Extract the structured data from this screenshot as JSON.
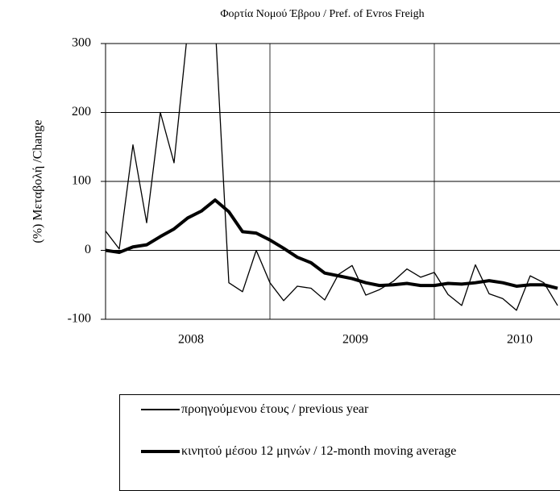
{
  "chart_data": {
    "type": "line",
    "title": "Φορτία Νομού Έβρου / Pref. of  Evros Freigh",
    "y_label": "(%) Μεταβολή /Change",
    "categories": [
      null,
      null,
      null,
      null,
      null,
      null,
      "2008",
      null,
      null,
      null,
      null,
      null,
      null,
      null,
      null,
      null,
      null,
      null,
      "2009",
      null,
      null,
      null,
      null,
      null,
      null,
      null,
      null,
      null,
      null,
      null,
      "2010",
      null,
      null,
      null
    ],
    "series": [
      {
        "name": "προηγούμενου έτους / previous year",
        "color": "#000000",
        "width": 1.3,
        "values": [
          28,
          2,
          153,
          40,
          200,
          127,
          320,
          500,
          330,
          -47,
          -60,
          0,
          -47,
          -73,
          -52,
          -55,
          -72,
          -35,
          -22,
          -65,
          -57,
          -45,
          -27,
          -39,
          -32,
          -64,
          -80,
          -21,
          -63,
          -70,
          -87,
          -37,
          -47,
          -80
        ]
      },
      {
        "name": "κινητού μέσου 12 μηνών / 12-month moving average",
        "color": "#000000",
        "width": 4,
        "values": [
          0,
          -3,
          5,
          8,
          20,
          31,
          47,
          57,
          73,
          56,
          27,
          25,
          15,
          3,
          -10,
          -18,
          -33,
          -37,
          -41,
          -47,
          -51,
          -50,
          -48,
          -51,
          -51,
          -48,
          -49,
          -47,
          -44,
          -47,
          -52,
          -50,
          -50,
          -55
        ]
      }
    ],
    "ylim": [
      -100,
      300
    ],
    "yticks": [
      -100,
      0,
      100,
      200,
      300
    ],
    "grid": true
  }
}
